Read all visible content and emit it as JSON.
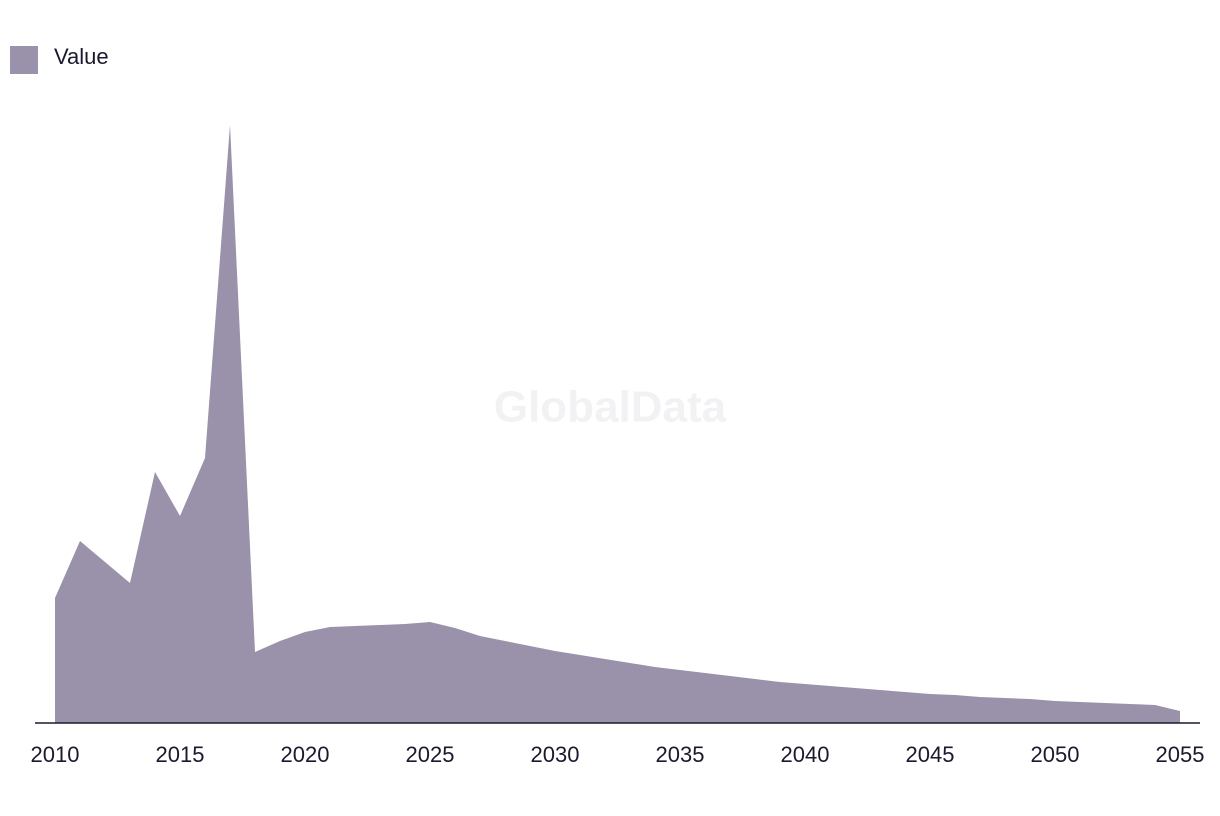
{
  "chart_data": {
    "type": "area",
    "watermark": "GlobalData",
    "x": [
      2010,
      2011,
      2012,
      2013,
      2014,
      2015,
      2016,
      2017,
      2018,
      2019,
      2020,
      2021,
      2022,
      2023,
      2024,
      2025,
      2026,
      2027,
      2028,
      2029,
      2030,
      2031,
      2032,
      2033,
      2034,
      2035,
      2036,
      2037,
      2038,
      2039,
      2040,
      2041,
      2042,
      2043,
      2044,
      2045,
      2046,
      2047,
      2048,
      2049,
      2050,
      2051,
      2052,
      2053,
      2054,
      2055
    ],
    "series": [
      {
        "name": "Value",
        "color": "#9a91aa",
        "values": [
          125,
          182,
          161,
          140,
          251,
          207,
          265,
          598,
          71,
          82,
          91,
          96,
          97,
          98,
          99,
          101,
          95,
          87,
          82,
          77,
          72,
          68,
          64,
          60,
          56,
          53,
          50,
          47,
          44,
          41,
          39,
          37,
          35,
          33,
          31,
          29,
          28,
          26,
          25,
          24,
          22,
          21,
          20,
          19,
          18,
          12
        ]
      }
    ],
    "xlim": [
      2010,
      2055
    ],
    "xticks": [
      2010,
      2015,
      2020,
      2025,
      2030,
      2035,
      2040,
      2045,
      2050,
      2055
    ],
    "ylim": [
      0,
      600
    ],
    "legend": "top-left"
  }
}
